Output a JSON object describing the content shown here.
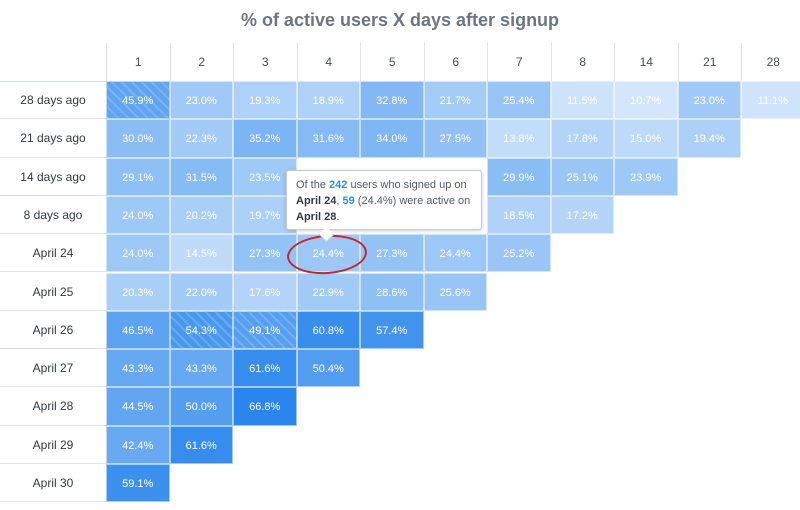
{
  "chart_data": {
    "type": "heatmap",
    "title": "% of active users X days after signup",
    "columns": [
      "1",
      "2",
      "3",
      "4",
      "5",
      "6",
      "7",
      "8",
      "14",
      "21",
      "28"
    ],
    "rows": [
      {
        "label": "28 days ago",
        "values": [
          "45.9%",
          "23.0%",
          "19.3%",
          "18.9%",
          "32.8%",
          "21.7%",
          "25.4%",
          "11.5%",
          "10.7%",
          "23.0%",
          "11.1%"
        ]
      },
      {
        "label": "21 days ago",
        "values": [
          "30.0%",
          "22.3%",
          "35.2%",
          "31.6%",
          "34.0%",
          "27.5%",
          "13.8%",
          "17.8%",
          "15.0%",
          "19.4%"
        ]
      },
      {
        "label": "14 days ago",
        "values": [
          "29.1%",
          "31.5%",
          "23.5%",
          "",
          "",
          "",
          "29.9%",
          "25.1%",
          "23.9%"
        ]
      },
      {
        "label": "8 days ago",
        "values": [
          "24.0%",
          "20.2%",
          "19.7%",
          "",
          "",
          "",
          "18.5%",
          "17.2%"
        ]
      },
      {
        "label": "April 24",
        "values": [
          "24.0%",
          "14.5%",
          "27.3%",
          "24.4%",
          "27.3%",
          "24.4%",
          "25.2%"
        ]
      },
      {
        "label": "April 25",
        "values": [
          "20.3%",
          "22.0%",
          "17.6%",
          "22.9%",
          "28.6%",
          "25.6%"
        ]
      },
      {
        "label": "April 26",
        "values": [
          "46.5%",
          "54.3%",
          "49.1%",
          "60.8%",
          "57.4%"
        ]
      },
      {
        "label": "April 27",
        "values": [
          "43.3%",
          "43.3%",
          "61.6%",
          "50.4%"
        ]
      },
      {
        "label": "April 28",
        "values": [
          "44.5%",
          "50.0%",
          "66.8%"
        ]
      },
      {
        "label": "April 29",
        "values": [
          "42.4%",
          "61.6%"
        ]
      },
      {
        "label": "April 30",
        "values": [
          "59.1%"
        ]
      }
    ],
    "hatched": [
      [
        0,
        0
      ],
      [
        6,
        1
      ],
      [
        6,
        2
      ]
    ],
    "color_scale": {
      "low": "#d3e6fb",
      "high": "#2a86ec"
    },
    "highlight_cell": {
      "row": 4,
      "col": 3
    }
  },
  "tooltip": {
    "p1": "Of the ",
    "users": "242",
    "p2": " users who signed up on ",
    "date1": "April 24",
    "p3": ", ",
    "active": "59",
    "p4": " (24.4%) were active on ",
    "date2": "April 28",
    "p5": "."
  }
}
